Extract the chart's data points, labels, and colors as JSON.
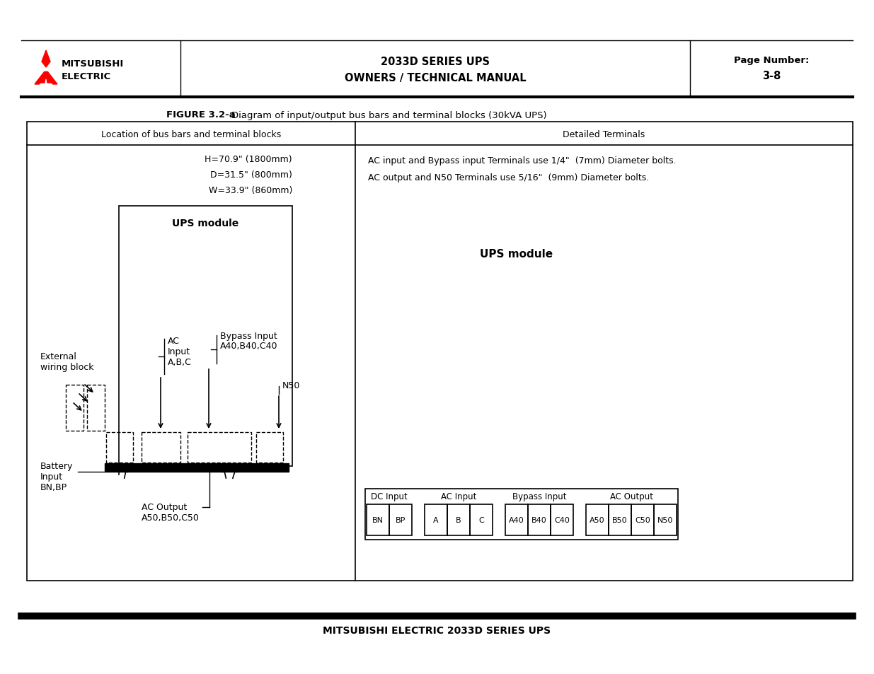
{
  "page_bg": "#ffffff",
  "header": {
    "company_line1": "MITSUBISHI",
    "company_line2": "ELECTRIC",
    "title_line1": "2033D SERIES UPS",
    "title_line2": "OWNERS / TECHNICAL MANUAL",
    "page_label": "Page Number:",
    "page_number": "3-8"
  },
  "footer_text": "MITSUBISHI ELECTRIC 2033D SERIES UPS",
  "figure_label": "FIGURE 3.2-a",
  "figure_caption": "    Diagram of input/output bus bars and terminal blocks (30kVA UPS)",
  "left_header": "Location of bus bars and terminal blocks",
  "right_header": "Detailed Terminals",
  "dims": [
    "H=70.9\" (1800mm)",
    "D=31.5\" (800mm)",
    "W=33.9\" (860mm)"
  ],
  "right_text1": "AC input and Bypass input Terminals use 1/4\"  (7mm) Diameter bolts.",
  "right_text2": "AC output and N50 Terminals use 5/16\"  (9mm) Diameter bolts.",
  "right_title": "UPS module",
  "left_module_title": "UPS module",
  "ext_label1": "External",
  "ext_label2": "wiring block",
  "bat_label1": "Battery",
  "bat_label2": "Input",
  "bat_label3": "BN,BP",
  "ac_out_label1": "AC Output",
  "ac_out_label2": "A50,B50,C50",
  "ac_input_label1": "AC",
  "ac_input_label2": "Input",
  "ac_input_label3": "A,B,C",
  "bypass_label1": "Bypass Input",
  "bypass_label2": "A40,B40,C40",
  "n50_label": "N50",
  "terminal_groups": [
    {
      "label": "DC Input",
      "cells": [
        "BN",
        "BP"
      ]
    },
    {
      "label": "AC Input",
      "cells": [
        "A",
        "B",
        "C"
      ]
    },
    {
      "label": "Bypass Input",
      "cells": [
        "A40",
        "B40",
        "C40"
      ]
    },
    {
      "label": "AC Output",
      "cells": [
        "A50",
        "B50",
        "C50",
        "N50"
      ]
    }
  ]
}
